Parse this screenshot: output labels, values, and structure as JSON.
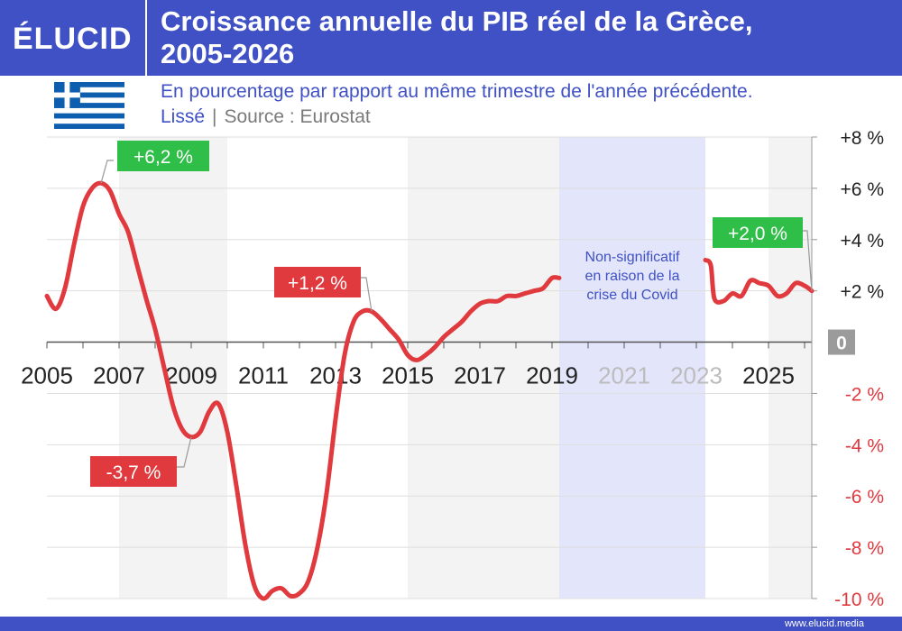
{
  "header": {
    "logo": "ÉLUCID",
    "title_line1": "Croissance annuelle du PIB réel de la Grèce,",
    "title_line2": "2005-2026",
    "subtitle": "En pourcentage par rapport au même trimestre de l'année précédente.",
    "subtitle_a": "Lissé",
    "subtitle_sep": "|",
    "subtitle_b": "Source : Eurostat"
  },
  "footer": {
    "url": "www.elucid.media"
  },
  "colors": {
    "brand": "#3f51c4",
    "line": "#e0393e",
    "positive_label": "#2fbf48",
    "negative_label": "#e0393e",
    "covid_band": "#e3e5fb",
    "shade": "#f3f3f3"
  },
  "chart_data": {
    "type": "line",
    "title": "Croissance annuelle du PIB réel de la Grèce, 2005-2026",
    "subtitle": "En pourcentage par rapport au même trimestre de l'année précédente.",
    "ylabel": "",
    "xlabel": "",
    "xlim": [
      2005,
      2026.2
    ],
    "ylim": [
      -10,
      8
    ],
    "x_ticks": [
      "2005",
      "2007",
      "2009",
      "2011",
      "2013",
      "2015",
      "2017",
      "2019",
      "2021",
      "2023",
      "2025"
    ],
    "x_ticks_dimmed": [
      "2021",
      "2023"
    ],
    "y_ticks": [
      "+8 %",
      "+6 %",
      "+4 %",
      "+2 %",
      "0",
      "-2 %",
      "-4 %",
      "-6 %",
      "-8 %",
      "-10 %"
    ],
    "y_tick_values": [
      8,
      6,
      4,
      2,
      0,
      -2,
      -4,
      -6,
      -8,
      -10
    ],
    "covid_band": [
      2019.2,
      2023.25
    ],
    "covid_note": [
      "Non-significatif",
      "en raison de la",
      "crise du Covid"
    ],
    "series": [
      {
        "segment": "before_covid",
        "x": [
          2005.0,
          2005.25,
          2005.5,
          2005.75,
          2006.0,
          2006.25,
          2006.5,
          2006.75,
          2007.0,
          2007.25,
          2007.5,
          2007.75,
          2008.0,
          2008.25,
          2008.5,
          2008.75,
          2009.0,
          2009.25,
          2009.5,
          2009.75,
          2010.0,
          2010.25,
          2010.5,
          2010.75,
          2011.0,
          2011.25,
          2011.5,
          2011.75,
          2012.0,
          2012.25,
          2012.5,
          2012.75,
          2013.0,
          2013.25,
          2013.5,
          2013.75,
          2014.0,
          2014.25,
          2014.5,
          2014.75,
          2015.0,
          2015.25,
          2015.5,
          2015.75,
          2016.0,
          2016.25,
          2016.5,
          2016.75,
          2017.0,
          2017.25,
          2017.5,
          2017.75,
          2018.0,
          2018.25,
          2018.5,
          2018.75,
          2019.0,
          2019.2
        ],
        "y": [
          1.8,
          1.3,
          2.1,
          3.8,
          5.3,
          6.0,
          6.2,
          5.9,
          5.0,
          4.3,
          3.0,
          1.7,
          0.5,
          -1.0,
          -2.5,
          -3.4,
          -3.7,
          -3.5,
          -2.7,
          -2.4,
          -3.5,
          -5.6,
          -7.9,
          -9.5,
          -10.0,
          -9.7,
          -9.6,
          -9.9,
          -9.8,
          -9.3,
          -8.0,
          -5.9,
          -3.0,
          -0.5,
          0.8,
          1.2,
          1.2,
          0.9,
          0.5,
          0.1,
          -0.5,
          -0.7,
          -0.5,
          -0.2,
          0.2,
          0.5,
          0.8,
          1.2,
          1.5,
          1.6,
          1.6,
          1.8,
          1.8,
          1.9,
          2.0,
          2.1,
          2.5,
          2.5
        ]
      },
      {
        "segment": "after_covid",
        "x": [
          2023.25,
          2023.4,
          2023.5,
          2023.75,
          2024.0,
          2024.25,
          2024.5,
          2024.75,
          2025.0,
          2025.25,
          2025.5,
          2025.75,
          2026.0,
          2026.2
        ],
        "y": [
          3.2,
          3.0,
          1.7,
          1.6,
          1.9,
          1.8,
          2.4,
          2.3,
          2.2,
          1.8,
          1.9,
          2.3,
          2.2,
          2.0
        ]
      }
    ],
    "annotations": [
      {
        "text": "+6,2 %",
        "x": 2006.5,
        "y": 6.2,
        "sign": "positive"
      },
      {
        "text": "-3,7 %",
        "x": 2009.0,
        "y": -3.7,
        "sign": "negative"
      },
      {
        "text": "+1,2 %",
        "x": 2014.0,
        "y": 1.2,
        "sign": "negative"
      },
      {
        "text": "+2,0 %",
        "x": 2026.2,
        "y": 2.0,
        "sign": "positive"
      }
    ],
    "shaded_year_bands": [
      [
        2007,
        2010
      ],
      [
        2015,
        2019.2
      ],
      [
        2025,
        2026.2
      ]
    ],
    "grid": true
  }
}
